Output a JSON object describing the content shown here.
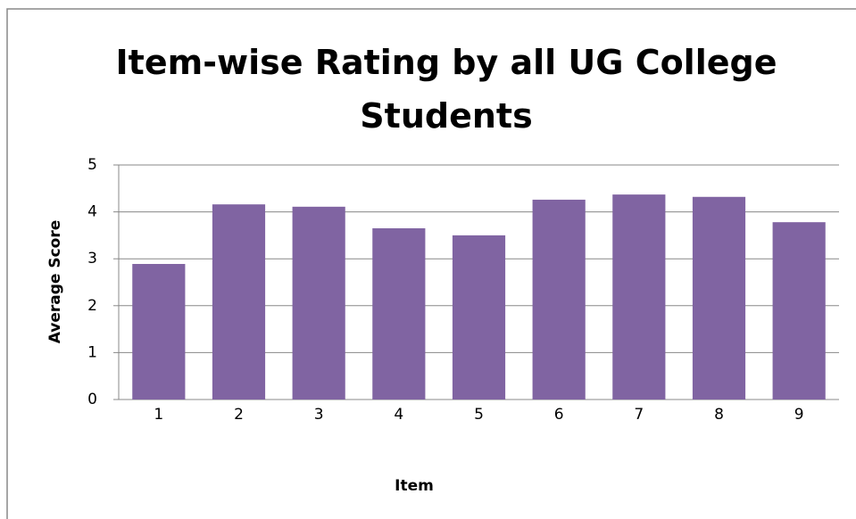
{
  "chart_data": {
    "type": "bar",
    "title": "Item-wise Rating by all UG College Students",
    "x_label": "Item",
    "y_label": "Average Score",
    "categories": [
      "1",
      "2",
      "3",
      "4",
      "5",
      "6",
      "7",
      "8",
      "9"
    ],
    "values": [
      2.89,
      4.16,
      4.11,
      3.65,
      3.5,
      4.26,
      4.37,
      4.32,
      3.78
    ],
    "color": "#8064a2",
    "ylim": [
      0,
      5
    ],
    "yticks": [
      0,
      1,
      2,
      3,
      4,
      5
    ],
    "grid": true
  }
}
